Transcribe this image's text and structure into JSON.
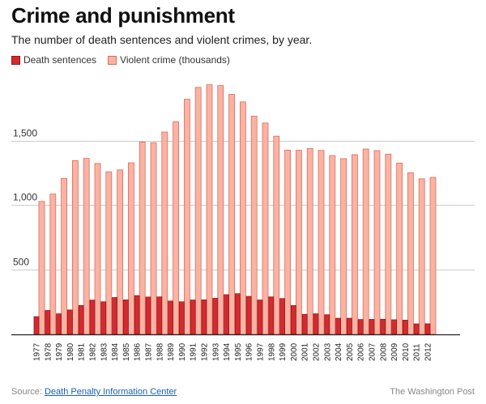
{
  "header": {
    "title": "Crime and punishment",
    "subtitle": "The number of death sentences and violent crimes, by year."
  },
  "legend": {
    "death_label": "Death sentences",
    "crime_label": "Violent crime (thousands)"
  },
  "colors": {
    "death_fill": "#d42a2f",
    "death_stroke": "#8e1a1e",
    "crime_fill": "#f9b3a3",
    "crime_stroke": "#e06a5b",
    "grid": "#cccccc",
    "baseline": "#222222"
  },
  "footer": {
    "source_prefix": "Source: ",
    "source_link": "Death Penalty Information Center",
    "credit": "The Washington Post"
  },
  "chart_data": {
    "type": "bar",
    "title": "Crime and punishment",
    "subtitle": "The number of death sentences and violent crimes, by year.",
    "xlabel": "",
    "ylabel": "",
    "ylim": [
      0,
      2000
    ],
    "yticks": [
      500,
      1000,
      1500
    ],
    "ytick_labels": [
      "500",
      "1,000",
      "1,500"
    ],
    "grid": true,
    "legend_position": "top-left",
    "categories": [
      "1977",
      "1978",
      "1979",
      "1980",
      "1981",
      "1982",
      "1983",
      "1984",
      "1985",
      "1986",
      "1987",
      "1988",
      "1989",
      "1990",
      "1991",
      "1992",
      "1993",
      "1994",
      "1995",
      "1996",
      "1997",
      "1998",
      "1999",
      "2000",
      "2001",
      "2002",
      "2003",
      "2004",
      "2005",
      "2006",
      "2007",
      "2008",
      "2009",
      "2010",
      "2011",
      "2012"
    ],
    "series": [
      {
        "name": "Death sentences",
        "values": [
          137,
          185,
          159,
          189,
          223,
          265,
          252,
          285,
          267,
          300,
          289,
          290,
          258,
          252,
          266,
          267,
          279,
          307,
          315,
          294,
          266,
          290,
          277,
          223,
          155,
          159,
          152,
          125,
          125,
          115,
          116,
          117,
          113,
          110,
          81,
          82
        ]
      },
      {
        "name": "Violent crime (thousands)",
        "values": [
          1029,
          1086,
          1208,
          1345,
          1362,
          1323,
          1258,
          1273,
          1328,
          1489,
          1484,
          1566,
          1646,
          1820,
          1912,
          1932,
          1926,
          1858,
          1799,
          1689,
          1636,
          1534,
          1426,
          1425,
          1439,
          1424,
          1384,
          1360,
          1391,
          1435,
          1422,
          1395,
          1326,
          1251,
          1204,
          1215
        ]
      }
    ]
  }
}
